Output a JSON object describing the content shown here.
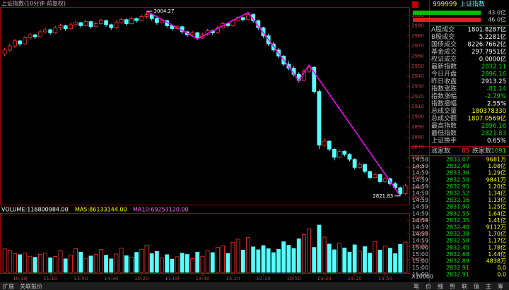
{
  "chart_data": [
    {
      "type": "candlestick",
      "title": "上证指数(10分钟 前复权)",
      "categories": [
        null,
        null,
        null,
        "10:30",
        null,
        null,
        null,
        null,
        null,
        "11:10",
        null,
        null,
        null,
        null,
        null,
        "13:50",
        null,
        null,
        null,
        null,
        null,
        "14:30",
        null,
        null,
        null,
        null,
        null,
        "10:20",
        null,
        null,
        null,
        null,
        null,
        "11:00",
        null,
        null,
        null,
        null,
        null,
        "13:40",
        null,
        null,
        null,
        null,
        null,
        "14:20",
        null,
        null,
        null,
        null,
        null,
        "10:10",
        null,
        null,
        null,
        null,
        null,
        "10:50",
        null,
        null,
        null,
        null,
        null,
        "13:30",
        null,
        null,
        null,
        null,
        null,
        "14:10",
        null,
        null,
        null,
        null,
        null,
        "14:50",
        null,
        null,
        null,
        null
      ],
      "ohlc": [
        [
          2962,
          2968,
          2960,
          2966
        ],
        [
          2966,
          2972,
          2964,
          2970
        ],
        [
          2970,
          2977,
          2968,
          2975
        ],
        [
          2975,
          2976,
          2970,
          2972
        ],
        [
          2972,
          2980,
          2971,
          2978
        ],
        [
          2978,
          2983,
          2976,
          2981
        ],
        [
          2981,
          2982,
          2977,
          2979
        ],
        [
          2979,
          2986,
          2978,
          2984
        ],
        [
          2984,
          2988,
          2982,
          2986
        ],
        [
          2986,
          2987,
          2981,
          2983
        ],
        [
          2983,
          2990,
          2982,
          2988
        ],
        [
          2988,
          2992,
          2986,
          2990
        ],
        [
          2990,
          2991,
          2985,
          2987
        ],
        [
          2987,
          2993,
          2986,
          2991
        ],
        [
          2991,
          2995,
          2989,
          2993
        ],
        [
          2993,
          2994,
          2988,
          2990
        ],
        [
          2990,
          2996,
          2989,
          2994
        ],
        [
          2994,
          2995,
          2987,
          2989
        ],
        [
          2989,
          2994,
          2988,
          2992
        ],
        [
          2992,
          2997,
          2991,
          2995
        ],
        [
          2995,
          2996,
          2989,
          2991
        ],
        [
          2991,
          2992,
          2986,
          2988
        ],
        [
          2988,
          2995,
          2987,
          2993
        ],
        [
          2993,
          2998,
          2992,
          2996
        ],
        [
          2996,
          2997,
          2990,
          2992
        ],
        [
          2992,
          2999,
          2991,
          2997
        ],
        [
          2997,
          2998,
          2993,
          2995
        ],
        [
          2995,
          3001,
          2994,
          2999
        ],
        [
          2999,
          3004.27,
          2997,
          3001
        ],
        [
          3001,
          3002,
          2995,
          2997
        ],
        [
          2997,
          2998,
          2991,
          2993
        ],
        [
          2993,
          2997,
          2992,
          2995
        ],
        [
          2995,
          2996,
          2988,
          2990
        ],
        [
          2990,
          2991,
          2985,
          2987
        ],
        [
          2987,
          2991,
          2986,
          2989
        ],
        [
          2989,
          2990,
          2982,
          2984
        ],
        [
          2984,
          2985,
          2979,
          2981
        ],
        [
          2981,
          2985,
          2980,
          2983
        ],
        [
          2983,
          2984,
          2976,
          2978
        ],
        [
          2978,
          2983,
          2977,
          2981
        ],
        [
          2981,
          2987,
          2980,
          2985
        ],
        [
          2985,
          2986,
          2981,
          2983
        ],
        [
          2983,
          2990,
          2982,
          2988
        ],
        [
          2988,
          2994,
          2987,
          2992
        ],
        [
          2992,
          2993,
          2988,
          2990
        ],
        [
          2990,
          2997,
          2989,
          2995
        ],
        [
          2995,
          3000,
          2994,
          2998
        ],
        [
          2998,
          2999,
          2994,
          2996
        ],
        [
          2996,
          3003,
          2995,
          3001
        ],
        [
          3001,
          3002,
          2993,
          2995
        ],
        [
          2995,
          2996,
          2986,
          2988
        ],
        [
          2988,
          2989,
          2978,
          2980
        ],
        [
          2980,
          2982,
          2970,
          2972
        ],
        [
          2972,
          2974,
          2964,
          2966
        ],
        [
          2966,
          2968,
          2958,
          2960
        ],
        [
          2960,
          2961,
          2950,
          2952
        ],
        [
          2952,
          2955,
          2946,
          2948
        ],
        [
          2948,
          2950,
          2940,
          2942
        ],
        [
          2942,
          2944,
          2934,
          2936
        ],
        [
          2936,
          2947,
          2935,
          2945
        ],
        [
          2945,
          2951,
          2943,
          2949
        ],
        [
          2949,
          2950,
          2923,
          2925
        ],
        [
          2925,
          2927,
          2868,
          2872
        ],
        [
          2872,
          2879,
          2870,
          2876
        ],
        [
          2876,
          2877,
          2866,
          2868
        ],
        [
          2868,
          2869,
          2857,
          2860
        ],
        [
          2860,
          2868,
          2859,
          2866
        ],
        [
          2866,
          2867,
          2861,
          2863
        ],
        [
          2863,
          2864,
          2856,
          2858
        ],
        [
          2858,
          2859,
          2848,
          2850
        ],
        [
          2850,
          2855,
          2849,
          2853
        ],
        [
          2853,
          2854,
          2844,
          2846
        ],
        [
          2846,
          2847,
          2838,
          2840
        ],
        [
          2840,
          2845,
          2839,
          2843
        ],
        [
          2843,
          2844,
          2834,
          2836
        ],
        [
          2836,
          2841,
          2835,
          2839
        ],
        [
          2839,
          2840,
          2832,
          2834
        ],
        [
          2834,
          2836,
          2828,
          2830
        ],
        [
          2830,
          2831,
          2821.83,
          2824
        ],
        [
          2824,
          2834,
          2823,
          2832.11
        ]
      ],
      "up_color": "#ff3232",
      "down_color": "#54ffff",
      "ylim": [
        2814,
        3007
      ],
      "yticks": [
        2820,
        2830,
        2840,
        2850,
        2860,
        2870,
        2880,
        2890,
        2900,
        2910,
        2920,
        2930,
        2940,
        2950,
        2960,
        2970,
        2980,
        2990,
        3000
      ],
      "trend_line": {
        "color": "#ff00ff",
        "x": [
          28,
          38,
          48,
          58,
          60,
          78
        ],
        "y": [
          3004.27,
          2977,
          3003,
          2936,
          2951,
          2821.83
        ]
      },
      "annotations": [
        {
          "x": 28,
          "y": 3004.27
        },
        {
          "x": 78,
          "y": 2821.83
        }
      ]
    },
    {
      "type": "bar",
      "title": "VOLUME:116800984.00",
      "ma_labels": [
        "MA5:86133144.00",
        "MA10:69253120.00"
      ],
      "values": [
        9000,
        8500,
        7200,
        6800,
        7500,
        6200,
        5800,
        6900,
        7400,
        5600,
        6100,
        8300,
        5200,
        6700,
        9100,
        7800,
        5400,
        6300,
        7000,
        8800,
        6600,
        5200,
        7100,
        9300,
        6400,
        5900,
        7700,
        8900,
        10500,
        7200,
        8100,
        5600,
        6800,
        5100,
        6000,
        7400,
        6900,
        5300,
        7800,
        6200,
        8400,
        7600,
        9700,
        10200,
        7300,
        11600,
        12800,
        8600,
        13400,
        9800,
        8700,
        10300,
        9100,
        7600,
        8900,
        11800,
        10400,
        9200,
        12900,
        14500,
        16800,
        9600,
        18200,
        13600,
        10900,
        8700,
        11200,
        9400,
        7800,
        10600,
        8200,
        9900,
        7400,
        11900,
        8600,
        10100,
        9300,
        7200,
        10800,
        11680
      ],
      "ylim": [
        0,
        22000
      ],
      "yticks": [
        5000,
        10000,
        15000,
        20000
      ],
      "unit": "X10000"
    }
  ],
  "quote_panel": {
    "code": "999999",
    "name": "上证指数",
    "bars": [
      {
        "label": "43.0亿",
        "color": "#00c000"
      },
      {
        "label": "46.0亿",
        "color": "#e02020"
      }
    ],
    "rows": [
      {
        "label": "A股成交",
        "value": "1801.8287亿",
        "color": "#ffffff"
      },
      {
        "label": "B股成交",
        "value": "5.2281亿",
        "color": "#ffffff"
      },
      {
        "label": "国债成交",
        "value": "8226.7662亿",
        "color": "#ffffff"
      },
      {
        "label": "基金成交",
        "value": "297.7951亿",
        "color": "#ffffff"
      },
      {
        "label": "权证成交",
        "value": "0.0000亿",
        "color": "#ffffff"
      },
      {
        "label": "最新指数",
        "value": "2832.11",
        "color": "#00e000"
      },
      {
        "label": "今日开盘",
        "value": "2896.16",
        "color": "#00e000"
      },
      {
        "label": "昨日收盘",
        "value": "2913.25",
        "color": "#ffffff"
      },
      {
        "label": "指数涨跌",
        "value": "-81.14",
        "color": "#00e000"
      },
      {
        "label": "指数涨幅",
        "value": "-2.79%",
        "color": "#00e000"
      },
      {
        "label": "指数振幅",
        "value": "2.55%",
        "color": "#ffffff"
      },
      {
        "label": "总成交量",
        "value": "180378330",
        "color": "#ffff00"
      },
      {
        "label": "总成交额",
        "value": "1807.0569亿",
        "color": "#ffff00"
      },
      {
        "label": "最高指数",
        "value": "2896.16",
        "color": "#00e000"
      },
      {
        "label": "最低指数",
        "value": "2821.83",
        "color": "#00e000"
      },
      {
        "label": "上证换手",
        "value": "0.65%",
        "color": "#ffffff"
      }
    ],
    "breadth": {
      "up_label": "涨家数",
      "up": 85,
      "down_label": "跌家数",
      "down": 1091
    },
    "ticks": [
      [
        "14:58",
        "2833.07",
        "9681万"
      ],
      [
        "14:59",
        "2832.49",
        "1.08亿"
      ],
      [
        "14:59",
        "2833.36",
        "1.29亿"
      ],
      [
        "14:59",
        "2832.50",
        "9841万"
      ],
      [
        "14:59",
        "2832.95",
        "1.20亿"
      ],
      [
        "14:59",
        "2832.52",
        "1.34亿"
      ],
      [
        "14:59",
        "2832.16",
        "1.13亿"
      ],
      [
        "14:59",
        "2831.90",
        "1.25亿"
      ],
      [
        "14:59",
        "2832.55",
        "1.64亿"
      ],
      [
        "14:59",
        "2832.35",
        "1.41亿"
      ],
      [
        "14:59",
        "2832.40",
        "9112万"
      ],
      [
        "14:59",
        "2832.38",
        "1.70亿"
      ],
      [
        "14:59",
        "2832.58",
        "1.17亿"
      ],
      [
        "15:00",
        "2832.45",
        "1.78亿"
      ],
      [
        "15:00",
        "2832.68",
        "1.44亿"
      ],
      [
        "15:00",
        "2832.89",
        "4838万"
      ],
      [
        "15:00",
        "2832.91",
        "0.0"
      ],
      [
        "15:00",
        "2832.91",
        "0.0"
      ]
    ]
  },
  "toolbar": {
    "left": [
      "扩展",
      "关联报价"
    ],
    "right": [
      "笔",
      "价",
      "细",
      "势",
      "联",
      "值",
      "主",
      "筹"
    ]
  }
}
